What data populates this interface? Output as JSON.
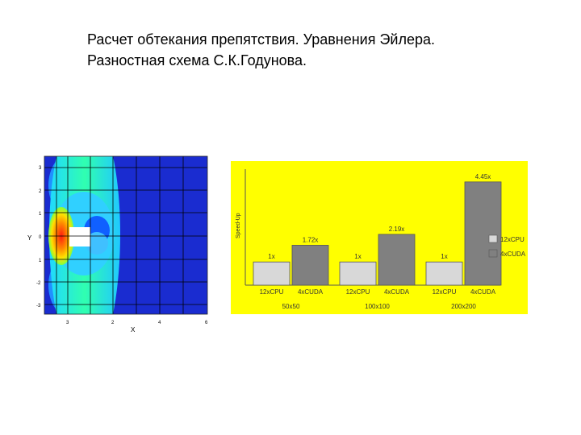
{
  "title": {
    "line1": "Расчет обтекания препятствия. Уравнения Эйлера.",
    "line2": "Разностная схема С.К.Годунова."
  },
  "flow_plot": {
    "y_label": "Y",
    "x_label": "X",
    "y_ticks": [
      "3",
      "2",
      "1",
      "0",
      "1",
      "-2",
      "-3"
    ],
    "x_ticks": [
      "3",
      "2",
      "4",
      "6"
    ],
    "colors": {
      "background": "#1a2cd0",
      "shock": "#22e0c0",
      "front": "#ff2a1a",
      "body": "#ffffff",
      "grid": "#000000"
    }
  },
  "chart_data": {
    "type": "bar",
    "y_axis_label": "Speed-Up",
    "background": "#ffff00",
    "groups": [
      {
        "name": "50x50",
        "bars": [
          {
            "label": "12xCPU",
            "value": 1,
            "value_label": "1x"
          },
          {
            "label": "4xCUDA",
            "value": 1.72,
            "value_label": "1.72x"
          }
        ]
      },
      {
        "name": "100x100",
        "bars": [
          {
            "label": "12xCPU",
            "value": 1,
            "value_label": "1x"
          },
          {
            "label": "4xCUDA",
            "value": 2.19,
            "value_label": "2.19x"
          }
        ]
      },
      {
        "name": "200x200",
        "bars": [
          {
            "label": "12xCPU",
            "value": 1,
            "value_label": "1x"
          },
          {
            "label": "4xCUDA",
            "value": 4.45,
            "value_label": "4.45x"
          }
        ]
      }
    ],
    "legend": [
      {
        "label": "12xCPU",
        "color": "#d8d8d8"
      },
      {
        "label": "4xCUDA",
        "color": "#808080"
      }
    ],
    "legend_position": "right",
    "ylim": [
      0,
      5
    ],
    "grid": false
  }
}
